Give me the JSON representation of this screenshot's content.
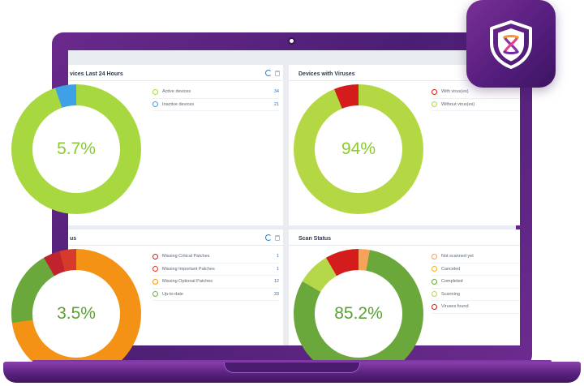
{
  "cards": {
    "top_left": {
      "title": "vices Last 24 Hours",
      "percent": "5.7%",
      "legend": [
        {
          "label": "Active devices",
          "value": "34",
          "color": "#a8d840"
        },
        {
          "label": "Inactive devices",
          "value": "21",
          "color": "#3ea0e6"
        }
      ]
    },
    "top_right": {
      "title": "Devices with Viruses",
      "percent": "94%",
      "legend": [
        {
          "label": "With virus(es)",
          "color": "#d41c1c"
        },
        {
          "label": "Without virus(es)",
          "color": "#b4d843"
        }
      ]
    },
    "bottom_left": {
      "title": "us",
      "percent": "3.5%",
      "legend": [
        {
          "label": "Missing Critical Patches",
          "value": "1",
          "color": "#c0232e"
        },
        {
          "label": "Missing Important Patches",
          "value": "1",
          "color": "#d63a2a"
        },
        {
          "label": "Missing Optional Patches",
          "value": "12",
          "color": "#f39215"
        },
        {
          "label": "Up-to-date",
          "value": "33",
          "color": "#71b241"
        }
      ]
    },
    "bottom_right": {
      "title": "Scan Status",
      "percent": "85.2%",
      "legend": [
        {
          "label": "Not scanned yet",
          "color": "#f5a35a"
        },
        {
          "label": "Canceled",
          "color": "#f0b323"
        },
        {
          "label": "Completed",
          "color": "#6aa83c"
        },
        {
          "label": "Scanning",
          "color": "#b5d84a"
        },
        {
          "label": "Viruses found",
          "color": "#d41c1c"
        }
      ]
    }
  },
  "colors": {
    "laptop": "#5a2280",
    "accent_green": "#a8d840",
    "accent_red": "#d41c1c",
    "accent_orange": "#f39215",
    "accent_blue": "#3ea0e6"
  },
  "badge": {
    "icon": "shield-icon"
  }
}
